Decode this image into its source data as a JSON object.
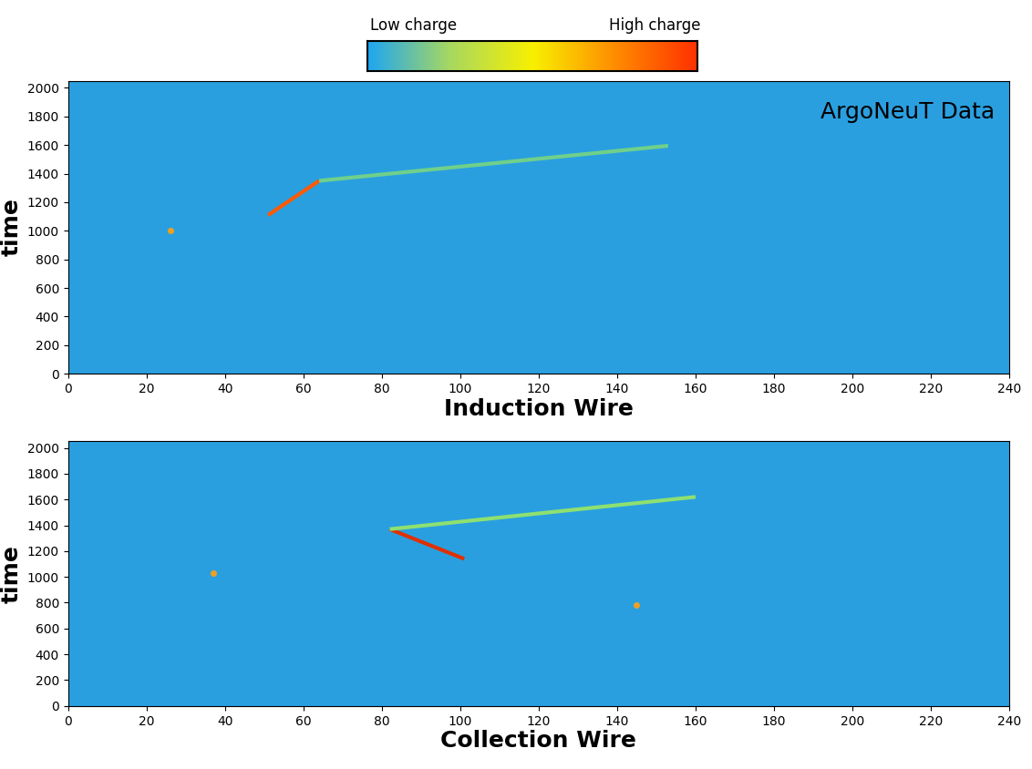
{
  "color_scale": {
    "labels": [
      "Low charge",
      "High charge"
    ],
    "colors": [
      "#1ea6f2",
      "#a8d860",
      "#f8f000",
      "#ff8c00",
      "#ff3000"
    ]
  },
  "chart_data": [
    {
      "type": "line",
      "annotation": "ArgoNeuT Data",
      "xlabel": "Induction Wire",
      "ylabel": "time",
      "color": "#2a9fe0",
      "xlim": [
        0,
        240
      ],
      "ylim": [
        0,
        2050
      ],
      "xticks": [
        0,
        20,
        40,
        60,
        80,
        100,
        120,
        140,
        160,
        180,
        200,
        220,
        240
      ],
      "yticks": [
        0,
        200,
        400,
        600,
        800,
        1000,
        1200,
        1400,
        1600,
        1800,
        2000
      ],
      "series": [
        {
          "x": [
            51,
            64
          ],
          "values": [
            1110,
            1350
          ],
          "color": "#ff5a00"
        },
        {
          "x": [
            64,
            153
          ],
          "values": [
            1350,
            1595
          ],
          "color": "#6fd08a"
        },
        {
          "x": [
            26
          ],
          "values": [
            1000
          ],
          "color": "#f0a020",
          "marker": "point"
        }
      ]
    },
    {
      "type": "line",
      "xlabel": "Collection Wire",
      "ylabel": "time",
      "color": "#2a9fe0",
      "xlim": [
        0,
        240
      ],
      "ylim": [
        0,
        2050
      ],
      "xticks": [
        0,
        20,
        40,
        60,
        80,
        100,
        120,
        140,
        160,
        180,
        200,
        220,
        240
      ],
      "yticks": [
        0,
        200,
        400,
        600,
        800,
        1000,
        1200,
        1400,
        1600,
        1800,
        2000
      ],
      "series": [
        {
          "x": [
            82,
            101
          ],
          "values": [
            1370,
            1140
          ],
          "color": "#e03000"
        },
        {
          "x": [
            82,
            160
          ],
          "values": [
            1370,
            1620
          ],
          "color": "#8ee070"
        },
        {
          "x": [
            37,
            145
          ],
          "values": [
            1030,
            780
          ],
          "color": "#f0a020",
          "marker": "point"
        }
      ]
    }
  ]
}
